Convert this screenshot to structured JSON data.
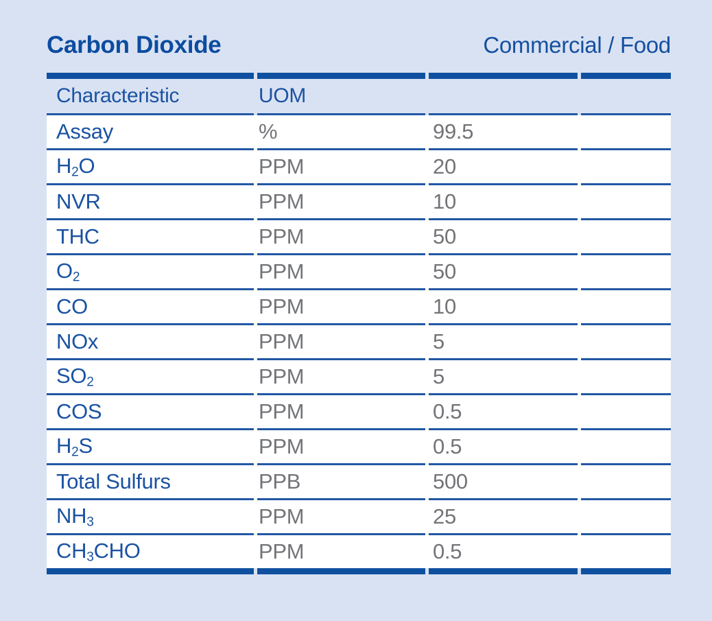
{
  "header": {
    "title": "Carbon Dioxide",
    "subtitle": "Commercial / Food"
  },
  "columns": {
    "characteristic": "Characteristic",
    "uom": "UOM"
  },
  "rows": [
    {
      "characteristic": [
        [
          "Assay",
          false
        ]
      ],
      "uom": "%",
      "value": "99.5"
    },
    {
      "characteristic": [
        [
          "H",
          false
        ],
        [
          "2",
          true
        ],
        [
          "O",
          false
        ]
      ],
      "uom": "PPM",
      "value": "20"
    },
    {
      "characteristic": [
        [
          "NVR",
          false
        ]
      ],
      "uom": "PPM",
      "value": "10"
    },
    {
      "characteristic": [
        [
          "THC",
          false
        ]
      ],
      "uom": "PPM",
      "value": "50"
    },
    {
      "characteristic": [
        [
          "O",
          false
        ],
        [
          "2",
          true
        ]
      ],
      "uom": "PPM",
      "value": "50"
    },
    {
      "characteristic": [
        [
          "CO",
          false
        ]
      ],
      "uom": "PPM",
      "value": "10"
    },
    {
      "characteristic": [
        [
          "NOx",
          false
        ]
      ],
      "uom": "PPM",
      "value": "5"
    },
    {
      "characteristic": [
        [
          "SO",
          false
        ],
        [
          "2",
          true
        ]
      ],
      "uom": "PPM",
      "value": "5"
    },
    {
      "characteristic": [
        [
          "COS",
          false
        ]
      ],
      "uom": "PPM",
      "value": "0.5"
    },
    {
      "characteristic": [
        [
          "H",
          false
        ],
        [
          "2",
          true
        ],
        [
          "S",
          false
        ]
      ],
      "uom": "PPM",
      "value": "0.5"
    },
    {
      "characteristic": [
        [
          "Total Sulfurs",
          false
        ]
      ],
      "uom": "PPB",
      "value": "500"
    },
    {
      "characteristic": [
        [
          "NH",
          false
        ],
        [
          "3",
          true
        ]
      ],
      "uom": "PPM",
      "value": "25"
    },
    {
      "characteristic": [
        [
          "CH",
          false
        ],
        [
          "3",
          true
        ],
        [
          "CHO",
          false
        ]
      ],
      "uom": "PPM",
      "value": "0.5"
    }
  ],
  "colors": {
    "page_background": "#d9e2f3",
    "row_background": "#ffffff",
    "title_blue": "#0c4c9f",
    "label_blue": "#1a52a2",
    "rule_thick_blue": "#0f51a0",
    "rule_thin_blue": "#2257a4",
    "value_gray": "#737478"
  }
}
